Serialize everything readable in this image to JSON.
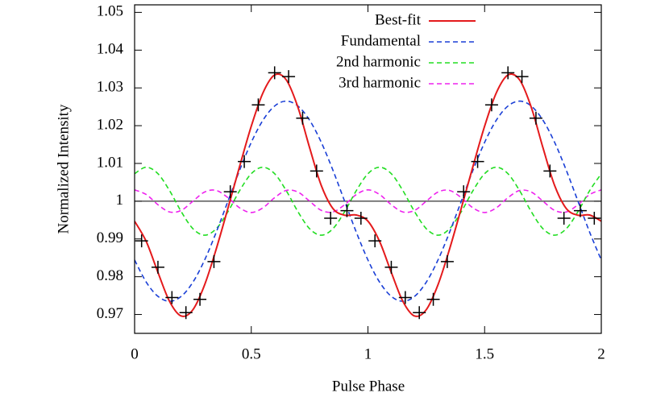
{
  "chart_data": {
    "type": "line",
    "xlabel": "Pulse Phase",
    "ylabel": "Normalized Intensity",
    "xlim": [
      0,
      2
    ],
    "ylim": [
      0.965,
      1.052
    ],
    "xticks": [
      0,
      0.5,
      1,
      1.5,
      2
    ],
    "yticks": [
      0.97,
      0.98,
      0.99,
      1,
      1.01,
      1.02,
      1.03,
      1.04,
      1.05
    ],
    "reference_line": 1,
    "legend": "top-right",
    "x": [
      0,
      0.05,
      0.1,
      0.15,
      0.2,
      0.25,
      0.3,
      0.35,
      0.4,
      0.45,
      0.5,
      0.55,
      0.6,
      0.65,
      0.7,
      0.75,
      0.8,
      0.85,
      0.9,
      0.95,
      1,
      1.05,
      1.1,
      1.15,
      1.2,
      1.25,
      1.3,
      1.35,
      1.4,
      1.45,
      1.5,
      1.55,
      1.6,
      1.65,
      1.7,
      1.75,
      1.8,
      1.85,
      1.9,
      1.95,
      2
    ],
    "series": [
      {
        "name": "Best-fit",
        "color": "#e41a1c",
        "dashed": false,
        "values": [
          0.9947,
          0.98932,
          0.98115,
          0.97343,
          0.96959,
          0.97128,
          0.97785,
          0.98738,
          0.99815,
          1.00921,
          1.01986,
          1.02868,
          1.03341,
          1.03213,
          1.02485,
          1.01416,
          1.00415,
          0.99806,
          0.99629,
          0.99635,
          0.9947,
          0.98932,
          0.98115,
          0.97343,
          0.96959,
          0.97128,
          0.97785,
          0.98738,
          0.99815,
          1.00921,
          1.01986,
          1.02868,
          1.03341,
          1.03213,
          1.02485,
          1.01416,
          1.00415,
          0.99806,
          0.99629,
          0.99635,
          0.9947
        ]
      },
      {
        "name": "Fundamental",
        "color": "#1a3fd6",
        "dashed": true,
        "values": [
          0.98442,
          0.97856,
          0.9748,
          0.9735,
          0.9748,
          0.97856,
          0.98442,
          0.99181,
          1,
          1.00819,
          1.01558,
          1.02144,
          1.0252,
          1.0265,
          1.0252,
          1.02144,
          1.01558,
          1.00819,
          1,
          0.99181,
          0.98442,
          0.97856,
          0.9748,
          0.9735,
          0.9748,
          0.97856,
          0.98442,
          0.99181,
          1,
          1.00819,
          1.01558,
          1.02144,
          1.0252,
          1.0265,
          1.0252,
          1.02144,
          1.01558,
          1.00819,
          1,
          0.99181,
          0.98442
        ]
      },
      {
        "name": "2nd harmonic",
        "color": "#22dd22",
        "dashed": true,
        "values": [
          1.00728,
          1.009,
          1.00728,
          1.00278,
          0.99722,
          0.99272,
          0.991,
          0.99272,
          0.99722,
          1.00278,
          1.00728,
          1.009,
          1.00728,
          1.00278,
          0.99722,
          0.99272,
          0.991,
          0.99272,
          0.99722,
          1.00278,
          1.00728,
          1.009,
          1.00728,
          1.00278,
          0.99722,
          0.99272,
          0.991,
          0.99272,
          0.99722,
          1.00278,
          1.00728,
          1.009,
          1.00728,
          1.00278,
          0.99722,
          0.99272,
          0.991,
          0.99272,
          0.99722,
          1.00278,
          1.00728
        ]
      },
      {
        "name": "3rd harmonic",
        "color": "#ee22ee",
        "dashed": true,
        "values": [
          1.003,
          1.00176,
          0.99907,
          0.99715,
          0.99757,
          1,
          1.00243,
          1.00285,
          1.00093,
          0.99824,
          0.997,
          0.99824,
          1.00093,
          1.00285,
          1.00243,
          1,
          0.99757,
          0.99715,
          0.99907,
          1.00176,
          1.003,
          1.00176,
          0.99907,
          0.99715,
          0.99757,
          1,
          1.00243,
          1.00285,
          1.00093,
          0.99824,
          0.997,
          0.99824,
          1.00093,
          1.00285,
          1.00243,
          1,
          0.99757,
          0.99715,
          0.99907,
          1.00176,
          1.003
        ]
      }
    ],
    "points": {
      "color": "#000000",
      "x": [
        0.03,
        0.1,
        0.16,
        0.22,
        0.28,
        0.34,
        0.41,
        0.47,
        0.53,
        0.6,
        0.66,
        0.72,
        0.78,
        0.84,
        0.91,
        0.97,
        1.03,
        1.1,
        1.16,
        1.22,
        1.28,
        1.34,
        1.41,
        1.47,
        1.53,
        1.6,
        1.66,
        1.72,
        1.78,
        1.84,
        1.91,
        1.97
      ],
      "values": [
        0.9895,
        0.9825,
        0.9745,
        0.9705,
        0.974,
        0.984,
        1.0025,
        1.0105,
        1.0255,
        1.034,
        1.033,
        1.022,
        1.008,
        0.9955,
        0.9975,
        0.9955,
        0.9895,
        0.9825,
        0.9745,
        0.9705,
        0.974,
        0.984,
        1.0025,
        1.0105,
        1.0255,
        1.034,
        1.033,
        1.022,
        1.008,
        0.9955,
        0.9975,
        0.9955
      ]
    }
  }
}
